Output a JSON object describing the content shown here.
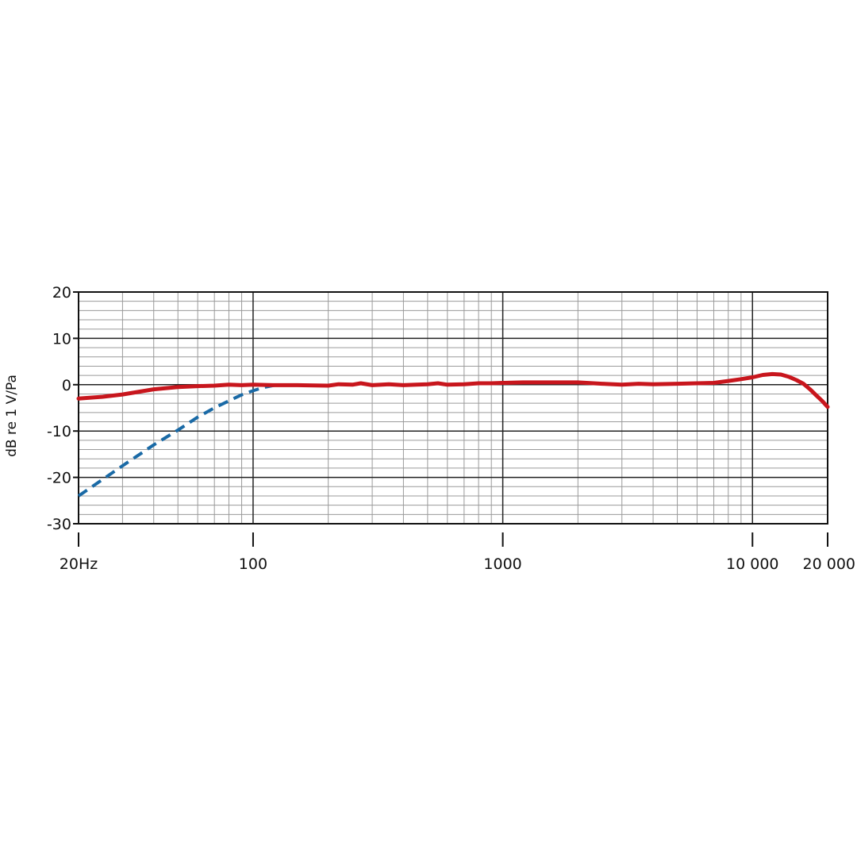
{
  "chart_data": {
    "type": "line",
    "title": "",
    "xlabel": "",
    "ylabel": "dB re 1 V/Pa",
    "x_scale": "log",
    "xlim": [
      20,
      20000
    ],
    "ylim": [
      -30,
      20
    ],
    "grid": true,
    "legend": "none",
    "x_ticks": [
      {
        "value": 20,
        "label": "20Hz"
      },
      {
        "value": 100,
        "label": "100"
      },
      {
        "value": 1000,
        "label": "1000"
      },
      {
        "value": 10000,
        "label": "10 000"
      },
      {
        "value": 20000,
        "label": "20 000"
      }
    ],
    "y_ticks": [
      {
        "value": 20,
        "label": "20"
      },
      {
        "value": 10,
        "label": "10"
      },
      {
        "value": 0,
        "label": "0"
      },
      {
        "value": -10,
        "label": "-10"
      },
      {
        "value": -20,
        "label": "-20"
      },
      {
        "value": -30,
        "label": "-30"
      }
    ],
    "series": [
      {
        "style": "solid",
        "color": "#c8161d",
        "points": [
          [
            20,
            -3.0
          ],
          [
            25,
            -2.6
          ],
          [
            30,
            -2.1
          ],
          [
            35,
            -1.5
          ],
          [
            40,
            -1.0
          ],
          [
            50,
            -0.5
          ],
          [
            60,
            -0.3
          ],
          [
            70,
            -0.2
          ],
          [
            80,
            0.0
          ],
          [
            90,
            -0.1
          ],
          [
            100,
            0.0
          ],
          [
            120,
            -0.1
          ],
          [
            150,
            -0.1
          ],
          [
            200,
            -0.2
          ],
          [
            220,
            0.1
          ],
          [
            250,
            0.0
          ],
          [
            270,
            0.3
          ],
          [
            300,
            -0.1
          ],
          [
            350,
            0.1
          ],
          [
            400,
            -0.1
          ],
          [
            450,
            0.0
          ],
          [
            500,
            0.1
          ],
          [
            550,
            0.3
          ],
          [
            600,
            0.0
          ],
          [
            700,
            0.1
          ],
          [
            800,
            0.3
          ],
          [
            900,
            0.3
          ],
          [
            1000,
            0.4
          ],
          [
            1200,
            0.5
          ],
          [
            1500,
            0.5
          ],
          [
            2000,
            0.5
          ],
          [
            2500,
            0.2
          ],
          [
            3000,
            0.0
          ],
          [
            3500,
            0.2
          ],
          [
            4000,
            0.1
          ],
          [
            5000,
            0.2
          ],
          [
            6000,
            0.3
          ],
          [
            7000,
            0.4
          ],
          [
            8000,
            0.8
          ],
          [
            9000,
            1.2
          ],
          [
            10000,
            1.6
          ],
          [
            11000,
            2.1
          ],
          [
            12000,
            2.3
          ],
          [
            13000,
            2.2
          ],
          [
            14000,
            1.7
          ],
          [
            15000,
            1.0
          ],
          [
            16000,
            0.2
          ],
          [
            17000,
            -1.0
          ],
          [
            18000,
            -2.3
          ],
          [
            19000,
            -3.5
          ],
          [
            20000,
            -4.8
          ]
        ]
      },
      {
        "style": "dashed",
        "color": "#1a6aa6",
        "points": [
          [
            20,
            -24.0
          ],
          [
            30,
            -17.5
          ],
          [
            40,
            -13.0
          ],
          [
            50,
            -9.8
          ],
          [
            60,
            -7.0
          ],
          [
            70,
            -5.0
          ],
          [
            80,
            -3.5
          ],
          [
            90,
            -2.2
          ],
          [
            100,
            -1.3
          ],
          [
            110,
            -0.6
          ],
          [
            125,
            0.0
          ]
        ]
      }
    ]
  }
}
